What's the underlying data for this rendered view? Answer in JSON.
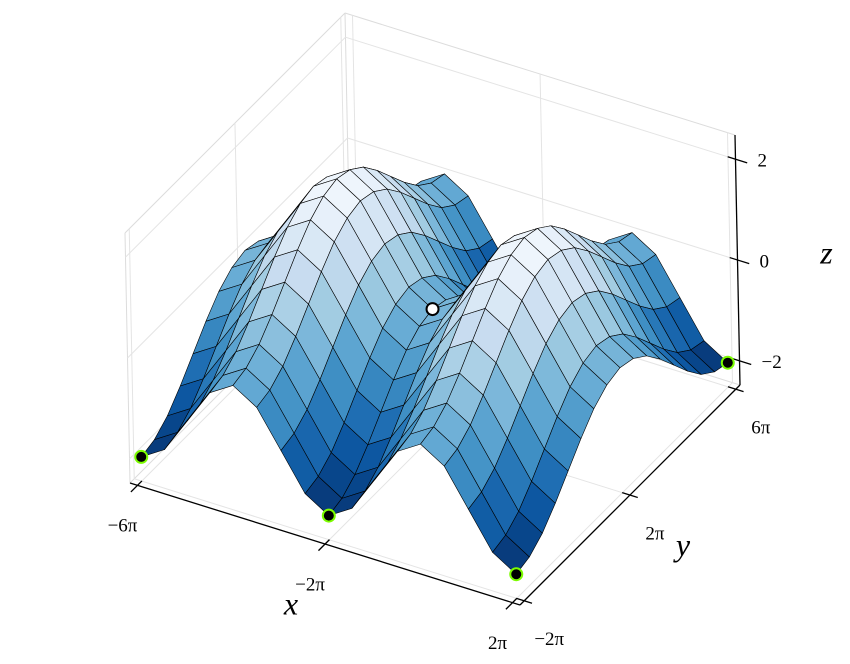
{
  "chart_data": {
    "type": "surface",
    "x": [
      -18.85,
      -17.28,
      -15.71,
      -14.14,
      -12.57,
      -11.0,
      -9.42,
      -7.85,
      -6.28,
      -4.71,
      -3.14,
      -1.57,
      0,
      1.57,
      3.14,
      4.71,
      6.28
    ],
    "y": [
      -6.28,
      -4.71,
      -3.14,
      -1.57,
      0,
      1.57,
      3.14,
      4.71,
      6.28,
      7.85,
      9.42,
      11.0,
      12.57,
      14.14,
      15.71,
      17.28,
      18.85
    ],
    "z": [
      [
        -2,
        -1.71,
        -1,
        -0.29,
        0,
        -0.29,
        -1,
        -1.71,
        -2,
        -1.71,
        -1,
        -0.29,
        0,
        -0.29,
        -1,
        -1.71,
        -2
      ],
      [
        -1.92,
        -1.63,
        -0.92,
        -0.21,
        0.08,
        -0.21,
        -0.92,
        -1.63,
        -1.92,
        -1.63,
        -0.92,
        -0.21,
        0.08,
        -0.21,
        -0.92,
        -1.63,
        -1.92
      ],
      [
        -1.71,
        -1.42,
        -0.71,
        0,
        0.29,
        0,
        -0.71,
        -1.42,
        -1.71,
        -1.42,
        -0.71,
        0,
        0.29,
        0,
        -0.71,
        -1.42,
        -1.71
      ],
      [
        -1.38,
        -1.09,
        -0.38,
        0.33,
        0.62,
        0.33,
        -0.38,
        -1.09,
        -1.38,
        -1.09,
        -0.38,
        0.33,
        0.62,
        0.33,
        -0.38,
        -1.09,
        -1.38
      ],
      [
        -1,
        -0.71,
        0,
        0.71,
        1,
        0.71,
        0,
        -0.71,
        -1,
        -0.71,
        0,
        0.71,
        1,
        0.71,
        0,
        -0.71,
        -1
      ],
      [
        -0.62,
        -0.33,
        0.38,
        1.09,
        1.38,
        1.09,
        0.38,
        -0.33,
        -0.62,
        -0.33,
        0.38,
        1.09,
        1.38,
        1.09,
        0.38,
        -0.33,
        -0.62
      ],
      [
        -0.29,
        0,
        0.71,
        1.42,
        1.71,
        1.42,
        0.71,
        0,
        -0.29,
        0,
        0.71,
        1.42,
        1.71,
        1.42,
        0.71,
        0,
        -0.29
      ],
      [
        -0.08,
        0.21,
        0.92,
        1.63,
        1.92,
        1.63,
        0.92,
        0.21,
        -0.08,
        0.21,
        0.92,
        1.63,
        1.92,
        1.63,
        0.92,
        0.21,
        -0.08
      ],
      [
        0,
        0.29,
        1,
        1.71,
        2,
        1.71,
        1,
        0.29,
        0,
        0.29,
        1,
        1.71,
        2,
        1.71,
        1,
        0.29,
        0
      ],
      [
        -0.08,
        0.21,
        0.92,
        1.63,
        1.92,
        1.63,
        0.92,
        0.21,
        -0.08,
        0.21,
        0.92,
        1.63,
        1.92,
        1.63,
        0.92,
        0.21,
        -0.08
      ],
      [
        -0.29,
        0,
        0.71,
        1.42,
        1.71,
        1.42,
        0.71,
        0,
        -0.29,
        0,
        0.71,
        1.42,
        1.71,
        1.42,
        0.71,
        0,
        -0.29
      ],
      [
        -0.62,
        -0.33,
        0.38,
        1.09,
        1.38,
        1.09,
        0.38,
        -0.33,
        -0.62,
        -0.33,
        0.38,
        1.09,
        1.38,
        1.09,
        0.38,
        -0.33,
        -0.62
      ],
      [
        -1,
        -0.71,
        0,
        0.71,
        1,
        0.71,
        0,
        -0.71,
        -1,
        -0.71,
        0,
        0.71,
        1,
        0.71,
        0,
        -0.71,
        -1
      ],
      [
        -1.38,
        -1.09,
        -0.38,
        0.33,
        0.62,
        0.33,
        -0.38,
        -1.09,
        -1.38,
        -1.09,
        -0.38,
        0.33,
        0.62,
        0.33,
        -0.38,
        -1.09,
        -1.38
      ],
      [
        -1.71,
        -1.42,
        -0.71,
        0,
        0.29,
        0,
        -0.71,
        -1.42,
        -1.71,
        -1.42,
        -0.71,
        0,
        0.29,
        0,
        -0.71,
        -1.42,
        -1.71
      ],
      [
        -1.92,
        -1.63,
        -0.92,
        -0.21,
        0.08,
        -0.21,
        -0.92,
        -1.63,
        -1.92,
        -1.63,
        -0.92,
        -0.21,
        0.08,
        -0.21,
        -0.92,
        -1.63,
        -1.92
      ],
      [
        -2,
        -1.71,
        -1,
        -0.29,
        0,
        -0.29,
        -1,
        -1.71,
        -2,
        -1.71,
        -1,
        -0.29,
        0,
        -0.29,
        -1,
        -1.71,
        -2
      ]
    ],
    "colormap": [
      "#08306b",
      "#08519c",
      "#2171b5",
      "#4292c6",
      "#6baed6",
      "#9ecae1",
      "#c6dbef",
      "#deebf7",
      "#f7fbff"
    ],
    "edgecolor": "#000000",
    "xlim": [
      -18.85,
      6.28
    ],
    "ylim": [
      -6.28,
      18.85
    ],
    "zlim": [
      -2,
      2
    ],
    "xticks": [
      {
        "value": -18.85,
        "label": "−6π"
      },
      {
        "value": -6.28,
        "label": "−2π"
      },
      {
        "value": 6.28,
        "label": "2π"
      }
    ],
    "yticks": [
      {
        "value": -6.28,
        "label": "−2π"
      },
      {
        "value": 6.28,
        "label": "2π"
      },
      {
        "value": 18.85,
        "label": "6π"
      }
    ],
    "zticks": [
      {
        "value": -2,
        "label": "−2"
      },
      0,
      2
    ],
    "xlabel": "x",
    "ylabel": "y",
    "zlabel": "z",
    "grid": true,
    "points": [
      {
        "x": [
          -18.85,
          -6.28,
          6.28,
          6.28
        ],
        "y": [
          -6.28,
          -6.28,
          -6.28,
          18.85
        ],
        "z": [
          -2,
          -2,
          -2,
          -2
        ],
        "color": "#000000",
        "edgecolor": "#7cfc00"
      },
      {
        "x": [
          -6.28
        ],
        "y": [
          6.28
        ],
        "z": [
          0
        ],
        "color": "#ffffff",
        "edgecolor": "#000000"
      }
    ]
  }
}
